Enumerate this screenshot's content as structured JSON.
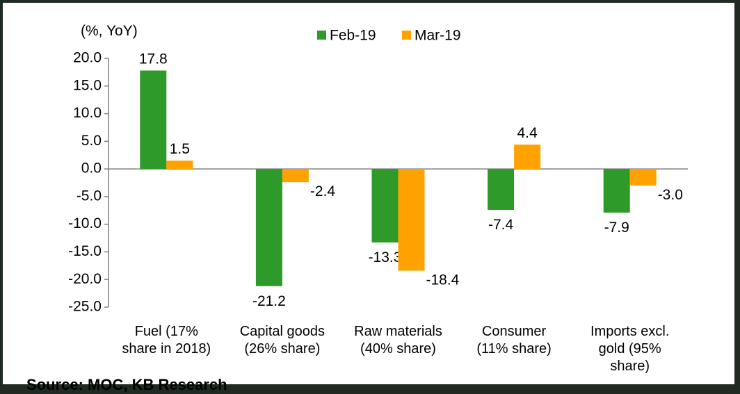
{
  "chart_data": {
    "type": "bar",
    "unit_label": "(%, YoY)",
    "categories": [
      [
        "Fuel (17%",
        "share in 2018)"
      ],
      [
        "Capital goods",
        "(26% share)"
      ],
      [
        "Raw materials",
        "(40% share)"
      ],
      [
        "Consumer",
        "(11% share)"
      ],
      [
        "Imports excl.",
        "gold (95%",
        "share)"
      ]
    ],
    "series": [
      {
        "name": "Feb-19",
        "color": "#2e9a2a",
        "values": [
          17.8,
          -21.2,
          -13.3,
          -7.4,
          -7.9
        ],
        "labels": [
          "17.8",
          "-21.2",
          "-13.3",
          "-7.4",
          "-7.9"
        ]
      },
      {
        "name": "Mar-19",
        "color": "#ffa200",
        "values": [
          1.5,
          -2.4,
          -18.4,
          4.4,
          -3.0
        ],
        "labels": [
          "1.5",
          "-2.4",
          "-18.4",
          "4.4",
          "-3.0"
        ]
      }
    ],
    "ylim": [
      -25,
      20
    ],
    "yticks": [
      "20.0",
      "15.0",
      "10.0",
      "5.0",
      "0.0",
      "-5.0",
      "-10.0",
      "-15.0",
      "-20.0",
      "-25.0"
    ],
    "legend_position": "top-center",
    "grid": false
  },
  "footer": {
    "source": "Source: MOC, KB Research"
  }
}
